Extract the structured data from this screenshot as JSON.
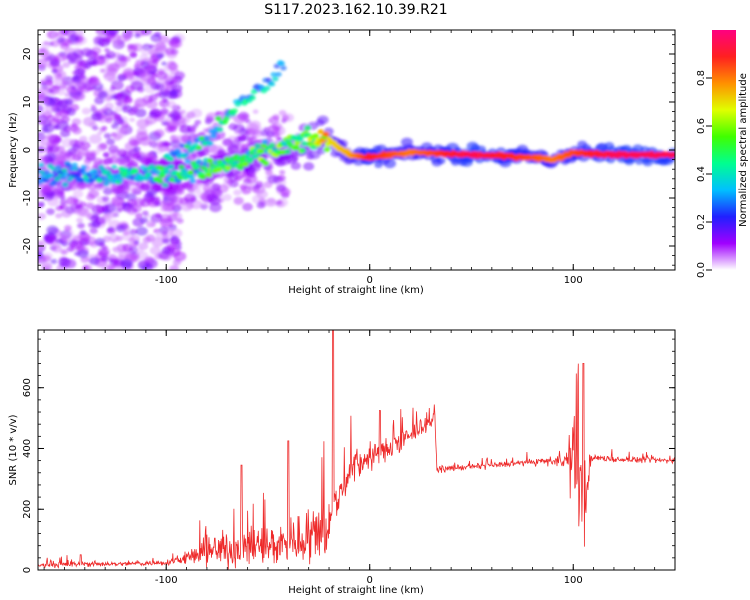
{
  "figure_title": "S117.2023.162.10.39.R21",
  "chart_data": [
    {
      "type": "heatmap",
      "title": "",
      "xlabel": "Height of straight line (km)",
      "ylabel": "Frequency (Hz)",
      "xlim": [
        -163,
        150
      ],
      "ylim": [
        -25,
        25
      ],
      "x_ticks": [
        -100,
        0,
        100
      ],
      "y_ticks": [
        -20,
        -10,
        0,
        10,
        20
      ],
      "colorbar": {
        "label": "Normalized spectral amplitude",
        "range": [
          0,
          1
        ],
        "ticks": [
          "0.0",
          "0.2",
          "0.4",
          "0.6",
          "0.8"
        ],
        "colors": [
          "#ffffff",
          "#a000ff",
          "#2020ff",
          "#00c0ff",
          "#00ff90",
          "#40ff00",
          "#e0ff00",
          "#ff9000",
          "#ff2020",
          "#ff0080"
        ]
      },
      "ridge": [
        {
          "x": -150,
          "y": -5,
          "amp": 0.35
        },
        {
          "x": -100,
          "y": -5,
          "amp": 0.45
        },
        {
          "x": -80,
          "y": -4,
          "amp": 0.5
        },
        {
          "x": -60,
          "y": -2,
          "amp": 0.55
        },
        {
          "x": -40,
          "y": 1,
          "amp": 0.55
        },
        {
          "x": -30,
          "y": 2,
          "amp": 0.6
        },
        {
          "x": -20,
          "y": 2,
          "amp": 0.7
        },
        {
          "x": -10,
          "y": -1,
          "amp": 0.75
        },
        {
          "x": 0,
          "y": -1.5,
          "amp": 0.9
        },
        {
          "x": 20,
          "y": -0.5,
          "amp": 0.8
        },
        {
          "x": 50,
          "y": -1,
          "amp": 0.95
        },
        {
          "x": 80,
          "y": -1.5,
          "amp": 0.85
        },
        {
          "x": 90,
          "y": -2,
          "amp": 0.8
        },
        {
          "x": 100,
          "y": -0.5,
          "amp": 0.85
        },
        {
          "x": 120,
          "y": -1,
          "amp": 0.95
        },
        {
          "x": 150,
          "y": -1,
          "amp": 0.95
        }
      ],
      "branch": [
        {
          "x": -100,
          "y": -2,
          "amp": 0.4
        },
        {
          "x": -80,
          "y": 2,
          "amp": 0.45
        },
        {
          "x": -65,
          "y": 9,
          "amp": 0.45
        },
        {
          "x": -50,
          "y": 14,
          "amp": 0.35
        },
        {
          "x": -42,
          "y": 18,
          "amp": 0.3
        }
      ]
    },
    {
      "type": "line",
      "title": "",
      "xlabel": "Height of straight line (km)",
      "ylabel": "SNR (10 * v/v)",
      "xlim": [
        -163,
        150
      ],
      "ylim": [
        0,
        790
      ],
      "x_ticks": [
        -100,
        0,
        100
      ],
      "y_ticks": [
        0,
        200,
        400,
        600
      ],
      "line_color": "#ee2b2b",
      "series_outline": {
        "x": [
          -163,
          -140,
          -120,
          -100,
          -90,
          -80,
          -70,
          -60,
          -50,
          -40,
          -30,
          -25,
          -20,
          -15,
          -10,
          0,
          10,
          20,
          25,
          30,
          32,
          33,
          40,
          60,
          80,
          95,
          100,
          103,
          105,
          108,
          110,
          120,
          150
        ],
        "base": [
          15,
          20,
          20,
          25,
          40,
          60,
          70,
          75,
          80,
          90,
          110,
          130,
          150,
          240,
          330,
          370,
          400,
          440,
          470,
          490,
          500,
          330,
          335,
          345,
          355,
          360,
          355,
          300,
          200,
          350,
          370,
          365,
          360
        ],
        "noise": [
          10,
          12,
          8,
          12,
          25,
          55,
          75,
          80,
          85,
          90,
          110,
          120,
          140,
          90,
          70,
          50,
          50,
          45,
          30,
          25,
          20,
          12,
          12,
          12,
          12,
          25,
          150,
          200,
          220,
          40,
          12,
          12,
          12
        ]
      },
      "spikes": [
        {
          "x": -142,
          "y": 50
        },
        {
          "x": -63,
          "y": 345
        },
        {
          "x": -40,
          "y": 425
        },
        {
          "x": -18,
          "y": 790
        },
        {
          "x": 5,
          "y": 525
        },
        {
          "x": 105,
          "y": 680
        }
      ]
    }
  ]
}
